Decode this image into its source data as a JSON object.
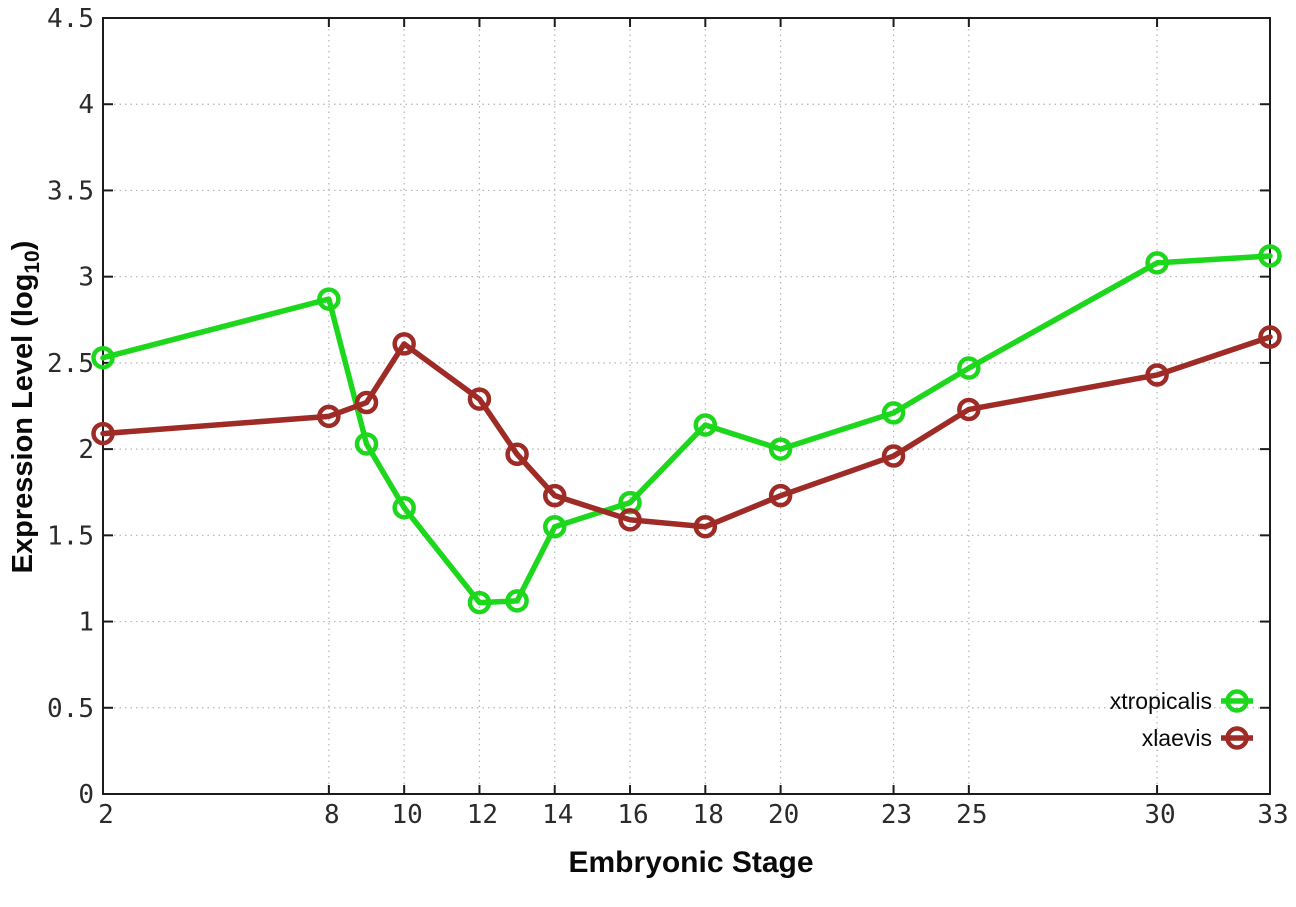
{
  "chart_data": {
    "type": "line",
    "title": "",
    "xlabel": "Embryonic Stage",
    "ylabel": {
      "main": "Expression Level (log",
      "sub": "10",
      "close": ")"
    },
    "x": [
      2,
      8,
      9,
      10,
      12,
      13,
      14,
      16,
      18,
      20,
      23,
      25,
      30,
      33
    ],
    "xtick_labels": [
      2,
      8,
      10,
      12,
      14,
      16,
      18,
      20,
      23,
      25,
      30,
      33
    ],
    "xlim": [
      2,
      33
    ],
    "ylim": [
      0,
      4.5
    ],
    "ytick_step": 0.5,
    "grid": "dotted",
    "legend_position": "inside-bottom-right",
    "series": [
      {
        "name": "xtropicalis",
        "color": "#1dd71d",
        "values": [
          2.53,
          2.87,
          2.03,
          1.66,
          1.11,
          1.12,
          1.55,
          1.69,
          2.14,
          2.0,
          2.21,
          2.47,
          3.08,
          3.12
        ]
      },
      {
        "name": "xlaevis",
        "color": "#9e2b26",
        "values": [
          2.09,
          2.19,
          2.27,
          2.61,
          2.29,
          1.97,
          1.73,
          1.59,
          1.55,
          1.73,
          1.96,
          2.23,
          2.43,
          2.65
        ]
      }
    ],
    "style": {
      "grid_color": "#b4b4b4",
      "axis_color": "#1c1c1c",
      "tick_label_color": "#2b2b2b",
      "background": "#ffffff"
    }
  }
}
